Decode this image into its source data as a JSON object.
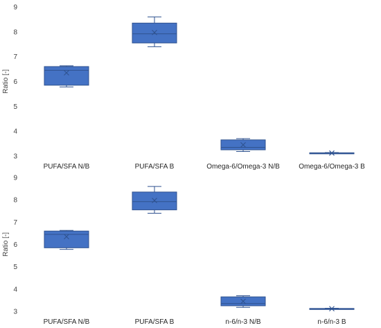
{
  "chart_data": [
    {
      "type": "box",
      "ylabel": "Ratio [-]",
      "ylim": [
        3,
        9
      ],
      "yticks": [
        3,
        4,
        5,
        6,
        7,
        8,
        9
      ],
      "grid": false,
      "categories": [
        "PUFA/SFA N/B",
        "PUFA/SFA B",
        "Omega-6/Omega-3 N/B",
        "Omega-6/Omega-3 B"
      ],
      "boxes": [
        {
          "min": 5.78,
          "q1": 5.85,
          "median": 6.45,
          "q3": 6.6,
          "max": 6.63,
          "mean": 6.35
        },
        {
          "min": 7.4,
          "q1": 7.55,
          "median": 7.92,
          "q3": 8.35,
          "max": 8.6,
          "mean": 7.97
        },
        {
          "min": 3.18,
          "q1": 3.25,
          "median": 3.35,
          "q3": 3.65,
          "max": 3.7,
          "mean": 3.45
        },
        {
          "min": 3.1,
          "q1": 3.11,
          "median": 3.12,
          "q3": 3.13,
          "max": 3.14,
          "mean": 3.12
        }
      ],
      "color": "#4472C4"
    },
    {
      "type": "box",
      "ylabel": "Ratio [-]",
      "ylim": [
        3,
        9
      ],
      "yticks": [
        3,
        4,
        5,
        6,
        7,
        8,
        9
      ],
      "grid": false,
      "categories": [
        "PUFA/SFA N/B",
        "PUFA/SFA B",
        "n-6/n-3 N/B",
        "n-6/n-3 B"
      ],
      "boxes": [
        {
          "min": 5.78,
          "q1": 5.85,
          "median": 6.45,
          "q3": 6.6,
          "max": 6.63,
          "mean": 6.35
        },
        {
          "min": 7.4,
          "q1": 7.55,
          "median": 7.92,
          "q3": 8.35,
          "max": 8.6,
          "mean": 7.97
        },
        {
          "min": 3.18,
          "q1": 3.25,
          "median": 3.35,
          "q3": 3.65,
          "max": 3.7,
          "mean": 3.45
        },
        {
          "min": 3.1,
          "q1": 3.11,
          "median": 3.12,
          "q3": 3.13,
          "max": 3.14,
          "mean": 3.12
        }
      ],
      "color": "#4472C4"
    }
  ]
}
